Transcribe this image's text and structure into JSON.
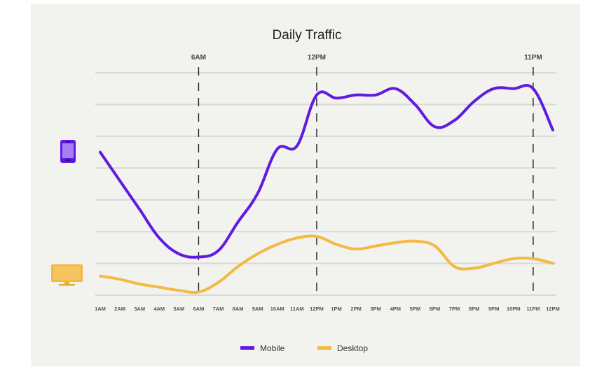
{
  "chart_data": {
    "type": "line",
    "title": "Daily Traffic",
    "xlabel": "",
    "ylabel": "",
    "x": [
      "1AM",
      "2AM",
      "3AM",
      "4AM",
      "5AM",
      "6AM",
      "7AM",
      "8AM",
      "9AM",
      "10AM",
      "11AM",
      "12PM",
      "1PM",
      "2PM",
      "3PM",
      "4PM",
      "5PM",
      "6PM",
      "7PM",
      "8PM",
      "9PM",
      "10PM",
      "11PM",
      "12PM"
    ],
    "ylim": [
      0,
      7
    ],
    "grid": true,
    "legend": "bottom",
    "markers": [
      {
        "label": "6AM",
        "index": 5
      },
      {
        "label": "12PM",
        "index": 11
      },
      {
        "label": "11PM",
        "index": 22
      }
    ],
    "series": [
      {
        "name": "Mobile",
        "color": "#5f1be0",
        "values": [
          4.5,
          3.6,
          2.7,
          1.8,
          1.3,
          1.2,
          1.4,
          2.3,
          3.2,
          4.6,
          4.7,
          6.3,
          6.2,
          6.3,
          6.3,
          6.5,
          6.0,
          5.3,
          5.5,
          6.1,
          6.5,
          6.5,
          6.5,
          5.2
        ]
      },
      {
        "name": "Desktop",
        "color": "#f4b942",
        "values": [
          0.6,
          0.5,
          0.35,
          0.25,
          0.15,
          0.1,
          0.4,
          0.9,
          1.3,
          1.6,
          1.8,
          1.85,
          1.6,
          1.45,
          1.55,
          1.65,
          1.7,
          1.55,
          0.9,
          0.85,
          1.0,
          1.15,
          1.15,
          1.0
        ]
      }
    ]
  },
  "icons": {
    "mobile": "smartphone-icon",
    "desktop": "monitor-icon"
  }
}
